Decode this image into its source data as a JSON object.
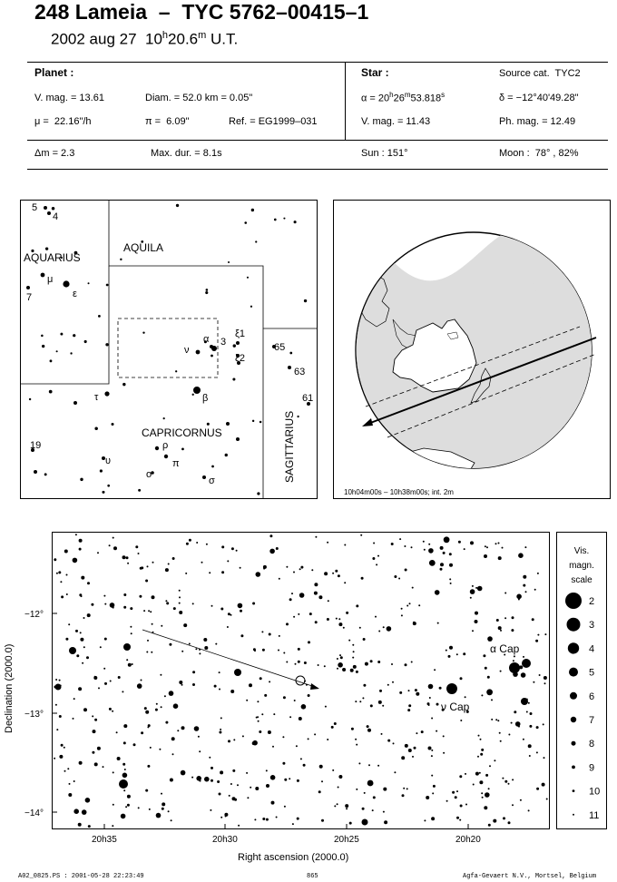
{
  "header": {
    "title": "248 Lameia  –  TYC 5762–00415–1",
    "date": "2002 aug 27  10",
    "h": "h",
    "minutes": "20.6",
    "m": "m",
    "ut": " U.T."
  },
  "info": {
    "planet_header": "Planet :",
    "star_header": "Star :",
    "source_cat": "Source cat.  TYC2",
    "vmag_planet": "V. mag. = 13.61",
    "diam": "Diam. = 52.0 km = 0.05\"",
    "alpha_pre": "α = 20",
    "alpha_h": "h",
    "alpha_mid": "26",
    "alpha_m": "m",
    "alpha_sec": "53.818",
    "alpha_s": "s",
    "delta": "δ = −12°40'49.28\"",
    "mu": "μ =  22.16\"/h",
    "pi": "π =  6.09\"",
    "ref": "Ref. = EG1999–031",
    "vmag_star": "V. mag. = 11.43",
    "phmag": "Ph. mag. = 12.49",
    "dm": "Δm = 2.3",
    "maxdur": "Max. dur. = 8.1s",
    "sun": "Sun : 151°",
    "moon": "Moon :  78° , 82%"
  },
  "constellation_map": {
    "labels": [
      "AQUARIUS",
      "AQUILA",
      "CAPRICORNUS",
      "SAGITTARIUS"
    ],
    "star_labels": [
      "5",
      "4",
      "μ",
      "ε",
      "7",
      "α",
      "3",
      "ξ1",
      "ξ2",
      "ν",
      "65",
      "63",
      "61",
      "τ",
      "β",
      "19",
      "ρ",
      "υ",
      "π",
      "o",
      "σ"
    ]
  },
  "globe": {
    "caption": "10h04m00s – 10h38m00s; int.  2m"
  },
  "star_chart": {
    "xlabel": "Right ascension (2000.0)",
    "ylabel": "Declination (2000.0)",
    "x_ticks": [
      "20h35",
      "20h30",
      "20h25",
      "20h20"
    ],
    "y_ticks": [
      "−12°",
      "−13°",
      "−14°"
    ],
    "star_names": [
      "α Cap",
      "ν Cap"
    ]
  },
  "legend": {
    "title_lines": [
      "Vis.",
      "magn.",
      "scale"
    ],
    "magnitudes": [
      "2",
      "3",
      "4",
      "5",
      "6",
      "7",
      "8",
      "9",
      "10",
      "11"
    ]
  },
  "footer": {
    "left": "A02_0825.PS : 2001-05-28 22:23:49",
    "center": "865",
    "right": "Agfa-Gevaert N.V., Mortsel, Belgium"
  }
}
